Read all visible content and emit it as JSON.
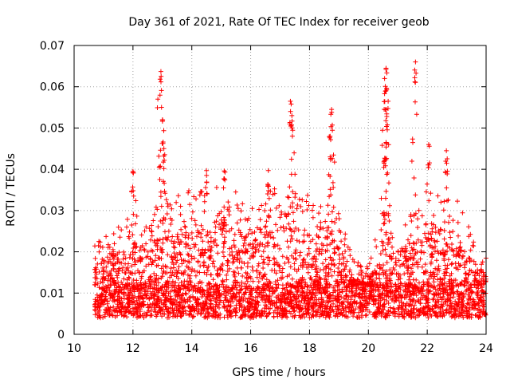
{
  "chart_data": {
    "type": "scatter",
    "title": "Day 361 of 2021, Rate Of TEC Index for receiver geob",
    "xlabel": "GPS time / hours",
    "ylabel": "ROTI / TECUs",
    "xlim": [
      10,
      24
    ],
    "ylim": [
      0,
      0.07
    ],
    "x_ticks": [
      10,
      12,
      14,
      16,
      18,
      20,
      22,
      24
    ],
    "x_tick_labels": [
      "10",
      "12",
      "14",
      "16",
      "18",
      "20",
      "22",
      "24"
    ],
    "y_ticks": [
      0,
      0.01,
      0.02,
      0.03,
      0.04,
      0.05,
      0.06,
      0.07
    ],
    "y_tick_labels": [
      "0",
      "0.01",
      "0.02",
      "0.03",
      "0.04",
      "0.05",
      "0.06",
      "0.07"
    ],
    "grid": true,
    "marker": "+",
    "series": [
      {
        "name": "ROTI",
        "color": "#ff0000",
        "x_start": 10.7,
        "x_end": 24.0,
        "baseline_range": [
          0.004,
          0.012
        ],
        "bulk_upper_envelope": [
          [
            10.7,
            0.022
          ],
          [
            11.0,
            0.024
          ],
          [
            11.5,
            0.028
          ],
          [
            12.0,
            0.03
          ],
          [
            12.5,
            0.028
          ],
          [
            13.0,
            0.033
          ],
          [
            13.5,
            0.035
          ],
          [
            14.0,
            0.036
          ],
          [
            14.5,
            0.035
          ],
          [
            15.0,
            0.036
          ],
          [
            15.5,
            0.035
          ],
          [
            16.0,
            0.034
          ],
          [
            16.5,
            0.036
          ],
          [
            17.0,
            0.036
          ],
          [
            17.5,
            0.035
          ],
          [
            18.0,
            0.034
          ],
          [
            18.5,
            0.032
          ],
          [
            19.0,
            0.03
          ],
          [
            19.5,
            0.018
          ],
          [
            20.0,
            0.017
          ],
          [
            20.5,
            0.03
          ],
          [
            21.0,
            0.028
          ],
          [
            21.5,
            0.03
          ],
          [
            22.0,
            0.035
          ],
          [
            22.5,
            0.034
          ],
          [
            23.0,
            0.033
          ],
          [
            23.5,
            0.025
          ],
          [
            24.0,
            0.019
          ]
        ],
        "peaks": [
          {
            "x": 12.95,
            "y": 0.0637
          },
          {
            "x": 13.0,
            "y": 0.052
          },
          {
            "x": 13.05,
            "y": 0.045
          },
          {
            "x": 17.35,
            "y": 0.0565
          },
          {
            "x": 17.4,
            "y": 0.053
          },
          {
            "x": 18.75,
            "y": 0.0545
          },
          {
            "x": 18.7,
            "y": 0.048
          },
          {
            "x": 20.6,
            "y": 0.0645
          },
          {
            "x": 20.55,
            "y": 0.062
          },
          {
            "x": 20.6,
            "y": 0.0545
          },
          {
            "x": 20.6,
            "y": 0.0465
          },
          {
            "x": 21.6,
            "y": 0.066
          },
          {
            "x": 22.05,
            "y": 0.046
          },
          {
            "x": 22.65,
            "y": 0.0445
          },
          {
            "x": 12.0,
            "y": 0.0395
          },
          {
            "x": 14.5,
            "y": 0.0397
          },
          {
            "x": 15.1,
            "y": 0.0396
          },
          {
            "x": 16.6,
            "y": 0.0397
          }
        ]
      }
    ]
  }
}
